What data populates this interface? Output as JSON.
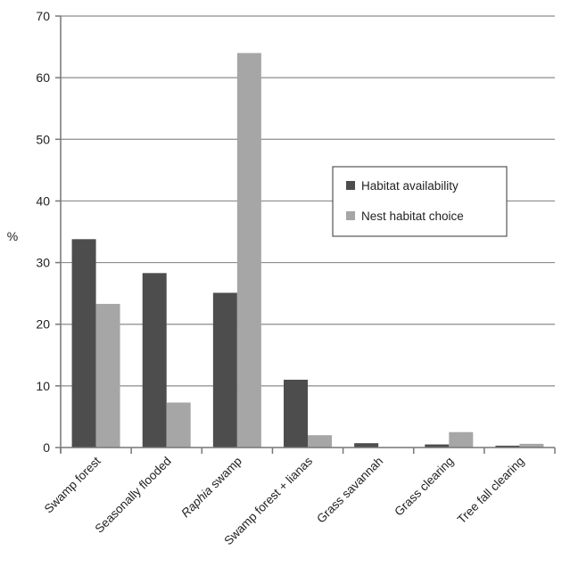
{
  "chart_data": {
    "type": "bar",
    "title": "",
    "xlabel": "",
    "ylabel": "%",
    "ylim": [
      0,
      70
    ],
    "yticks": [
      0,
      10,
      20,
      30,
      40,
      50,
      60,
      70
    ],
    "grid": true,
    "legend_position": "right-middle",
    "categories": [
      {
        "pre": "Swamp forest",
        "it": "",
        "post": ""
      },
      {
        "pre": "Seasonally flooded",
        "it": "",
        "post": ""
      },
      {
        "pre": "",
        "it": "Raphia",
        "post": " swamp"
      },
      {
        "pre": "Swamp forest + lianas",
        "it": "",
        "post": ""
      },
      {
        "pre": "Grass savannah",
        "it": "",
        "post": ""
      },
      {
        "pre": "Grass clearing",
        "it": "",
        "post": ""
      },
      {
        "pre": "Tree fall clearing",
        "it": "",
        "post": ""
      }
    ],
    "series": [
      {
        "name": "Habitat availability",
        "color": "#4d4d4d",
        "values": [
          33.8,
          28.3,
          25.1,
          11.0,
          0.7,
          0.5,
          0.3
        ]
      },
      {
        "name": "Nest habitat choice",
        "color": "#a6a6a6",
        "values": [
          23.3,
          7.3,
          64.0,
          2.0,
          0.0,
          2.5,
          0.6
        ]
      }
    ]
  }
}
